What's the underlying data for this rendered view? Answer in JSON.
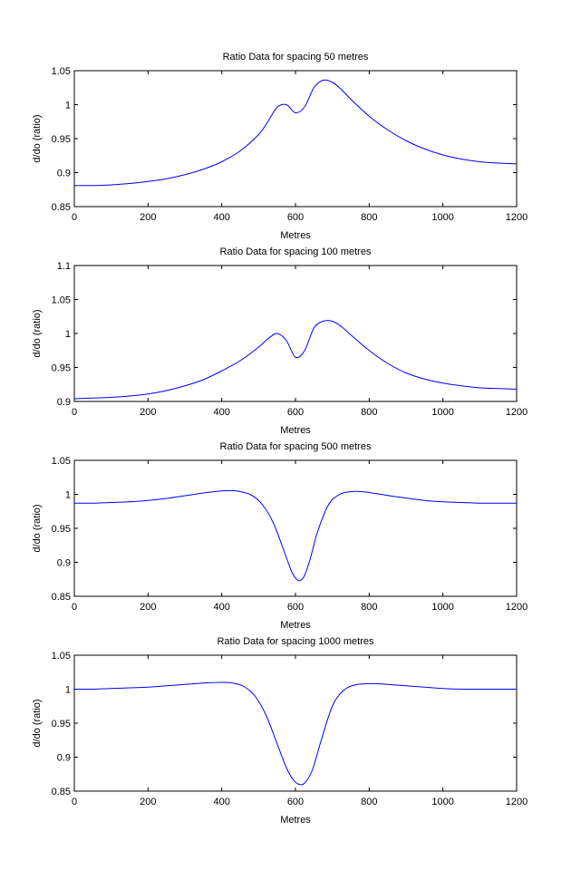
{
  "figure": {
    "background": "#ffffff",
    "line_color": "#0000ff",
    "axis_color": "#000000"
  },
  "chart_data": [
    {
      "type": "line",
      "title": "Ratio Data for spacing 50 metres",
      "xlabel": "Metres",
      "ylabel": "d/do (ratio)",
      "xlim": [
        0,
        1200
      ],
      "ylim": [
        0.85,
        1.05
      ],
      "xticks": [
        0,
        200,
        400,
        600,
        800,
        1000,
        1200
      ],
      "xtick_labels": [
        "0",
        "200",
        "400",
        "600",
        "800",
        "1000",
        "1200"
      ],
      "yticks": [
        0.85,
        0.9,
        0.95,
        1,
        1.05
      ],
      "ytick_labels": [
        "0.85",
        "0.9",
        "0.95",
        "1",
        "1.05"
      ],
      "grid": false,
      "series": [
        {
          "color": "#0000ff",
          "x": [
            0,
            50,
            100,
            150,
            200,
            250,
            300,
            350,
            400,
            450,
            500,
            525,
            550,
            575,
            600,
            625,
            650,
            675,
            700,
            725,
            750,
            800,
            850,
            900,
            950,
            1000,
            1050,
            1100,
            1150,
            1200
          ],
          "y": [
            0.881,
            0.881,
            0.882,
            0.884,
            0.887,
            0.891,
            0.897,
            0.905,
            0.916,
            0.932,
            0.956,
            0.975,
            0.996,
            1.0,
            0.988,
            0.997,
            1.025,
            1.036,
            1.033,
            1.022,
            1.008,
            0.983,
            0.963,
            0.947,
            0.935,
            0.926,
            0.92,
            0.916,
            0.914,
            0.913
          ]
        }
      ]
    },
    {
      "type": "line",
      "title": "Ratio Data for spacing 100 metres",
      "xlabel": "Metres",
      "ylabel": "d/do (ratio)",
      "xlim": [
        0,
        1200
      ],
      "ylim": [
        0.9,
        1.1
      ],
      "xticks": [
        0,
        200,
        400,
        600,
        800,
        1000,
        1200
      ],
      "xtick_labels": [
        "0",
        "200",
        "400",
        "600",
        "800",
        "1000",
        "1200"
      ],
      "yticks": [
        0.9,
        0.95,
        1,
        1.05,
        1.1
      ],
      "ytick_labels": [
        "0.9",
        "0.95",
        "1",
        "1.05",
        "1.1"
      ],
      "grid": false,
      "series": [
        {
          "color": "#0000ff",
          "x": [
            0,
            50,
            100,
            150,
            200,
            250,
            300,
            350,
            400,
            450,
            500,
            525,
            550,
            575,
            600,
            625,
            650,
            675,
            700,
            725,
            750,
            800,
            850,
            900,
            950,
            1000,
            1050,
            1100,
            1150,
            1200
          ],
          "y": [
            0.904,
            0.905,
            0.906,
            0.908,
            0.911,
            0.916,
            0.923,
            0.932,
            0.945,
            0.96,
            0.98,
            0.992,
            1.0,
            0.99,
            0.965,
            0.975,
            1.008,
            1.018,
            1.018,
            1.01,
            0.998,
            0.975,
            0.956,
            0.942,
            0.933,
            0.927,
            0.923,
            0.92,
            0.919,
            0.918
          ]
        }
      ]
    },
    {
      "type": "line",
      "title": "Ratio Data for spacing 500 metres",
      "xlabel": "Metres",
      "ylabel": "d/do (ratio)",
      "xlim": [
        0,
        1200
      ],
      "ylim": [
        0.85,
        1.05
      ],
      "xticks": [
        0,
        200,
        400,
        600,
        800,
        1000,
        1200
      ],
      "xtick_labels": [
        "0",
        "200",
        "400",
        "600",
        "800",
        "1000",
        "1200"
      ],
      "yticks": [
        0.85,
        0.9,
        0.95,
        1,
        1.05
      ],
      "ytick_labels": [
        "0.85",
        "0.9",
        "0.95",
        "1",
        "1.05"
      ],
      "grid": false,
      "series": [
        {
          "color": "#0000ff",
          "x": [
            0,
            50,
            100,
            150,
            200,
            250,
            300,
            350,
            400,
            440,
            480,
            510,
            540,
            570,
            590,
            605,
            615,
            625,
            640,
            660,
            690,
            720,
            750,
            780,
            820,
            880,
            950,
            1000,
            1050,
            1100,
            1150,
            1200
          ],
          "y": [
            0.987,
            0.987,
            0.988,
            0.989,
            0.991,
            0.994,
            0.998,
            1.002,
            1.005,
            1.005,
            0.999,
            0.985,
            0.958,
            0.915,
            0.886,
            0.874,
            0.874,
            0.881,
            0.905,
            0.945,
            0.985,
            1.0,
            1.004,
            1.004,
            1.001,
            0.996,
            0.991,
            0.989,
            0.988,
            0.987,
            0.987,
            0.987
          ]
        }
      ]
    },
    {
      "type": "line",
      "title": "Ratio Data for spacing 1000 metres",
      "xlabel": "Metres",
      "ylabel": "d/do (ratio)",
      "xlim": [
        0,
        1200
      ],
      "ylim": [
        0.85,
        1.05
      ],
      "xticks": [
        0,
        200,
        400,
        600,
        800,
        1000,
        1200
      ],
      "xtick_labels": [
        "0",
        "200",
        "400",
        "600",
        "800",
        "1000",
        "1200"
      ],
      "yticks": [
        0.85,
        0.9,
        0.95,
        1,
        1.05
      ],
      "ytick_labels": [
        "0.85",
        "0.9",
        "0.95",
        "1",
        "1.05"
      ],
      "grid": false,
      "series": [
        {
          "color": "#0000ff",
          "x": [
            0,
            50,
            100,
            150,
            200,
            250,
            300,
            350,
            400,
            430,
            460,
            490,
            520,
            550,
            575,
            595,
            610,
            625,
            645,
            670,
            700,
            730,
            760,
            790,
            820,
            850,
            900,
            950,
            1000,
            1050,
            1100,
            1150,
            1200
          ],
          "y": [
            1.0,
            1.0,
            1.001,
            1.002,
            1.003,
            1.005,
            1.007,
            1.009,
            1.01,
            1.009,
            1.004,
            0.99,
            0.962,
            0.92,
            0.885,
            0.866,
            0.86,
            0.862,
            0.88,
            0.925,
            0.975,
            0.998,
            1.006,
            1.008,
            1.008,
            1.007,
            1.005,
            1.003,
            1.001,
            1.0,
            1.0,
            1.0,
            1.0
          ]
        }
      ]
    }
  ]
}
